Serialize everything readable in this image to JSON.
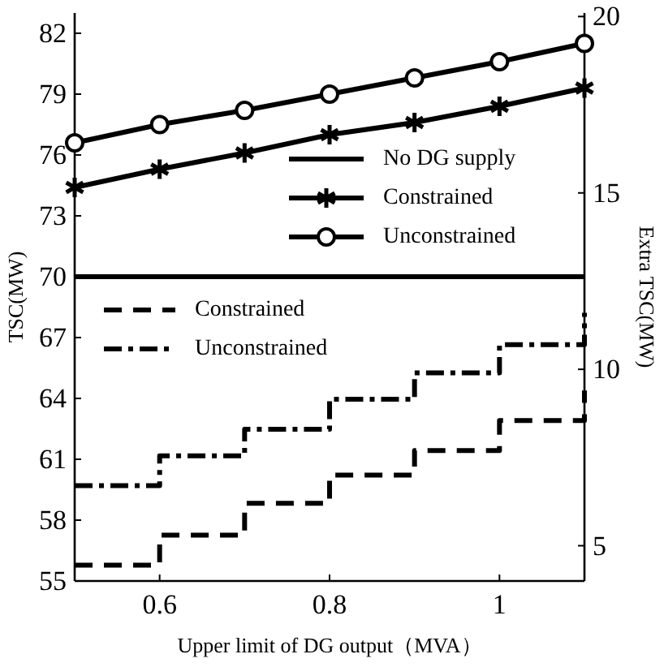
{
  "chart_data": {
    "type": "line",
    "xlabel": "Upper limit of DG output（MVA）",
    "ylabel": "TSC(MW)",
    "y2label": "Extra TSC(MW)",
    "x": [
      0.5,
      0.6,
      0.7,
      0.8,
      0.9,
      1.0,
      1.1
    ],
    "series": [
      {
        "name": "No DG supply",
        "color": "#000000",
        "marker": "none",
        "line_style": "solid",
        "values": [
          70,
          70,
          70,
          70,
          70,
          70,
          70
        ]
      },
      {
        "name": "Constrained",
        "color": "#000000",
        "marker": "cross",
        "line_style": "solid",
        "values": [
          74.4,
          75.3,
          76.1,
          77.0,
          77.6,
          78.4,
          79.3
        ]
      },
      {
        "name": "Unconstrained",
        "color": "#000000",
        "marker": "circle",
        "line_style": "solid",
        "values": [
          76.6,
          77.5,
          78.2,
          79.0,
          79.8,
          80.6,
          81.5
        ]
      },
      {
        "name": "Constrained",
        "type": "step",
        "axis": "y2",
        "color": "#000000",
        "line_style": "dashed",
        "values": [
          4.45,
          5.3,
          6.2,
          7.0,
          7.7,
          8.55,
          9.4
        ]
      },
      {
        "name": "Unconstrained",
        "type": "step",
        "axis": "y2",
        "color": "#000000",
        "line_style": "dashdot",
        "values": [
          6.7,
          7.55,
          8.3,
          9.15,
          9.9,
          10.7,
          11.6
        ]
      }
    ],
    "xlim": [
      0.5,
      1.1
    ],
    "xticks": [
      0.6,
      0.8,
      1
    ],
    "ylim": [
      55,
      83
    ],
    "yticks": [
      55,
      58,
      61,
      64,
      67,
      70,
      73,
      76,
      79,
      82
    ],
    "y2lim": [
      4,
      20.1
    ],
    "y2ticks": [
      5,
      10,
      15,
      20
    ],
    "grid": false,
    "legend": "center right"
  }
}
